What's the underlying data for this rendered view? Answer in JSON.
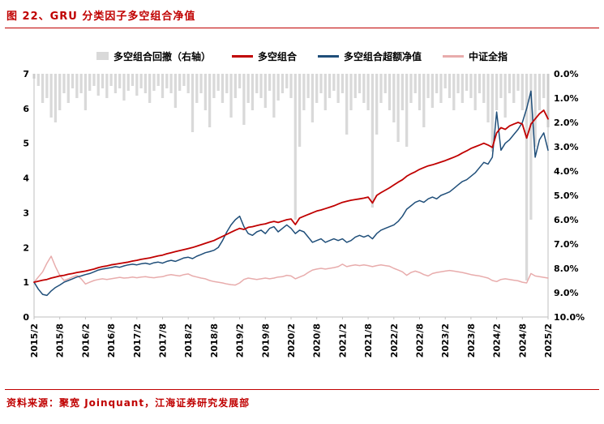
{
  "header": {
    "title": "图 22、GRU 分类因子多空组合净值"
  },
  "footer": {
    "source_prefix": "资料来源：",
    "source_text": "聚宽 Joinquant，江海证券研究发展部"
  },
  "colors": {
    "accent_red": "#C00000",
    "dark_blue": "#1F4E79",
    "pink": "#E8ACAC",
    "gray_bar": "#D9D9D9",
    "axis_line": "#BFBFBF"
  },
  "chart_data": {
    "type": "line",
    "title": "GRU 分类因子多空组合净值",
    "x_tick_labels": [
      "2015/2",
      "2015/8",
      "2016/2",
      "2016/8",
      "2017/2",
      "2017/8",
      "2018/2",
      "2018/8",
      "2019/2",
      "2019/8",
      "2020/2",
      "2020/8",
      "2021/2",
      "2021/8",
      "2022/2",
      "2022/8",
      "2023/2",
      "2023/8",
      "2024/2",
      "2024/8",
      "2025/2"
    ],
    "x_label_step": 6,
    "x_start": "2015/2",
    "x_end": "2025/2",
    "grid": false,
    "legend_position": "top",
    "left_axis": {
      "min": 0,
      "max": 7,
      "ticks": [
        0,
        1,
        2,
        3,
        4,
        5,
        6,
        7
      ]
    },
    "right_axis": {
      "min": 0,
      "max": 10,
      "inverted": true,
      "ticks": [
        "0.0%",
        "1.0%",
        "2.0%",
        "3.0%",
        "4.0%",
        "5.0%",
        "6.0%",
        "7.0%",
        "8.0%",
        "9.0%",
        "10.0%"
      ]
    },
    "bar_series": {
      "name": "多空组合回撤（右轴）",
      "axis": "right",
      "color": "#D9D9D9",
      "values": [
        0.2,
        0.5,
        1.2,
        1.0,
        1.8,
        2.0,
        1.5,
        0.8,
        1.2,
        0.6,
        1.0,
        0.8,
        1.5,
        0.7,
        0.5,
        0.9,
        0.6,
        1.0,
        0.5,
        0.8,
        0.6,
        1.1,
        0.7,
        0.5,
        0.9,
        0.6,
        0.8,
        1.2,
        0.7,
        0.5,
        1.0,
        0.6,
        0.8,
        1.4,
        0.7,
        0.5,
        0.8,
        2.4,
        1.2,
        0.8,
        1.5,
        2.2,
        1.0,
        0.7,
        1.2,
        0.8,
        1.8,
        1.0,
        0.6,
        2.1,
        1.2,
        1.5,
        0.8,
        1.0,
        1.4,
        0.7,
        1.8,
        1.1,
        0.8,
        0.6,
        1.0,
        6.0,
        3.0,
        1.5,
        1.0,
        2.0,
        1.2,
        0.8,
        1.5,
        1.0,
        0.7,
        1.2,
        0.8,
        2.5,
        1.5,
        1.0,
        0.8,
        1.2,
        1.5,
        5.5,
        2.5,
        1.2,
        0.8,
        1.5,
        2.0,
        2.8,
        1.5,
        3.0,
        1.2,
        0.8,
        1.5,
        2.2,
        1.0,
        1.4,
        0.8,
        1.2,
        0.6,
        1.0,
        1.5,
        0.8,
        1.2,
        0.7,
        1.0,
        1.5,
        0.8,
        1.2,
        2.0,
        3.2,
        1.5,
        1.0,
        1.8,
        0.8,
        1.2,
        0.7,
        1.5,
        8.5,
        6.0,
        3.0,
        1.5,
        1.0,
        2.2
      ]
    },
    "series": [
      {
        "name": "多空组合",
        "axis": "left",
        "color": "#C00000",
        "values": [
          1.0,
          1.03,
          1.06,
          1.08,
          1.12,
          1.15,
          1.18,
          1.2,
          1.23,
          1.25,
          1.28,
          1.3,
          1.32,
          1.35,
          1.38,
          1.42,
          1.45,
          1.47,
          1.5,
          1.52,
          1.54,
          1.56,
          1.58,
          1.61,
          1.63,
          1.66,
          1.68,
          1.7,
          1.73,
          1.76,
          1.78,
          1.82,
          1.85,
          1.88,
          1.91,
          1.94,
          1.97,
          2.0,
          2.04,
          2.08,
          2.12,
          2.16,
          2.2,
          2.26,
          2.32,
          2.38,
          2.44,
          2.5,
          2.55,
          2.52,
          2.58,
          2.6,
          2.63,
          2.66,
          2.68,
          2.72,
          2.75,
          2.72,
          2.76,
          2.8,
          2.82,
          2.66,
          2.85,
          2.9,
          2.95,
          3.0,
          3.05,
          3.08,
          3.12,
          3.16,
          3.2,
          3.25,
          3.3,
          3.33,
          3.36,
          3.38,
          3.4,
          3.42,
          3.45,
          3.28,
          3.5,
          3.58,
          3.65,
          3.72,
          3.8,
          3.88,
          3.95,
          4.05,
          4.12,
          4.18,
          4.25,
          4.3,
          4.35,
          4.38,
          4.42,
          4.46,
          4.5,
          4.55,
          4.6,
          4.65,
          4.72,
          4.78,
          4.85,
          4.9,
          4.95,
          5.0,
          4.95,
          4.88,
          5.3,
          5.45,
          5.4,
          5.5,
          5.55,
          5.6,
          5.55,
          5.15,
          5.55,
          5.7,
          5.85,
          5.95,
          5.7
        ]
      },
      {
        "name": "多空组合超额净值",
        "axis": "left",
        "color": "#1F4E79",
        "values": [
          1.0,
          0.8,
          0.65,
          0.62,
          0.75,
          0.85,
          0.92,
          1.0,
          1.05,
          1.1,
          1.15,
          1.18,
          1.22,
          1.25,
          1.3,
          1.35,
          1.38,
          1.4,
          1.42,
          1.45,
          1.43,
          1.47,
          1.5,
          1.52,
          1.5,
          1.53,
          1.55,
          1.52,
          1.56,
          1.58,
          1.55,
          1.6,
          1.63,
          1.6,
          1.65,
          1.7,
          1.72,
          1.68,
          1.75,
          1.8,
          1.85,
          1.88,
          1.92,
          2.0,
          2.2,
          2.45,
          2.65,
          2.8,
          2.9,
          2.6,
          2.4,
          2.35,
          2.45,
          2.5,
          2.4,
          2.55,
          2.6,
          2.45,
          2.55,
          2.65,
          2.55,
          2.4,
          2.5,
          2.45,
          2.3,
          2.15,
          2.2,
          2.25,
          2.15,
          2.2,
          2.25,
          2.2,
          2.25,
          2.15,
          2.2,
          2.3,
          2.35,
          2.3,
          2.35,
          2.25,
          2.4,
          2.5,
          2.55,
          2.6,
          2.65,
          2.75,
          2.9,
          3.1,
          3.2,
          3.3,
          3.35,
          3.3,
          3.4,
          3.45,
          3.4,
          3.5,
          3.55,
          3.6,
          3.7,
          3.8,
          3.9,
          3.95,
          4.05,
          4.15,
          4.3,
          4.45,
          4.4,
          4.6,
          5.9,
          4.8,
          5.0,
          5.1,
          5.25,
          5.4,
          5.6,
          6.0,
          6.5,
          4.6,
          5.1,
          5.3,
          4.8
        ]
      },
      {
        "name": "中证全指",
        "axis": "left",
        "color": "#E8ACAC",
        "values": [
          1.0,
          1.15,
          1.3,
          1.55,
          1.75,
          1.45,
          1.2,
          1.05,
          1.1,
          1.15,
          1.2,
          1.1,
          0.95,
          1.0,
          1.05,
          1.08,
          1.1,
          1.08,
          1.1,
          1.12,
          1.14,
          1.12,
          1.13,
          1.15,
          1.13,
          1.15,
          1.16,
          1.14,
          1.13,
          1.15,
          1.16,
          1.2,
          1.22,
          1.2,
          1.18,
          1.22,
          1.24,
          1.18,
          1.15,
          1.12,
          1.1,
          1.05,
          1.02,
          1.0,
          0.98,
          0.95,
          0.93,
          0.92,
          0.98,
          1.08,
          1.12,
          1.1,
          1.08,
          1.1,
          1.12,
          1.1,
          1.12,
          1.15,
          1.16,
          1.2,
          1.18,
          1.1,
          1.15,
          1.2,
          1.28,
          1.35,
          1.38,
          1.4,
          1.38,
          1.4,
          1.42,
          1.45,
          1.52,
          1.45,
          1.48,
          1.5,
          1.48,
          1.5,
          1.48,
          1.45,
          1.48,
          1.5,
          1.48,
          1.46,
          1.4,
          1.35,
          1.3,
          1.2,
          1.28,
          1.32,
          1.28,
          1.22,
          1.18,
          1.25,
          1.28,
          1.3,
          1.32,
          1.34,
          1.32,
          1.3,
          1.28,
          1.25,
          1.22,
          1.2,
          1.18,
          1.15,
          1.12,
          1.05,
          1.02,
          1.08,
          1.1,
          1.08,
          1.06,
          1.04,
          1.0,
          0.98,
          1.25,
          1.18,
          1.16,
          1.14,
          1.12
        ]
      }
    ]
  }
}
